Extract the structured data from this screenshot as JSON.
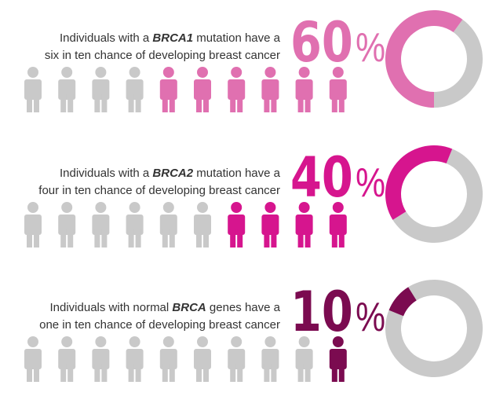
{
  "chart_data": [
    {
      "type": "donut",
      "color": "#e070b0",
      "rest_color": "#c9c9c9",
      "line1": [
        "Individuals with a ",
        "BRCA1",
        " mutation have a"
      ],
      "line2": "six in ten chance of developing breast cancer",
      "values": [
        60
      ],
      "value_labels": [
        "60%"
      ],
      "max": 100
    },
    {
      "type": "donut",
      "color": "#d6158e",
      "rest_color": "#c9c9c9",
      "line1": [
        "Individuals with a ",
        "BRCA2",
        " mutation have a"
      ],
      "line2": "four in ten chance of developing breast cancer",
      "values": [
        40
      ],
      "value_labels": [
        "40%"
      ],
      "max": 100
    },
    {
      "type": "donut",
      "color": "#7b0b50",
      "rest_color": "#c9c9c9",
      "line1": [
        "Individuals with normal ",
        "BRCA",
        " genes have a"
      ],
      "line2": "one in ten chance of developing breast cancer",
      "values": [
        10
      ],
      "value_labels": [
        "10%"
      ],
      "max": 100
    }
  ]
}
